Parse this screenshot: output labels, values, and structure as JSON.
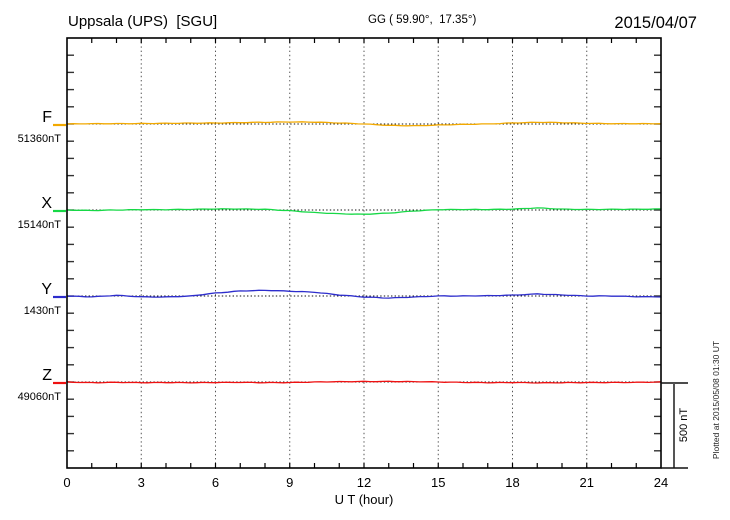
{
  "header": {
    "title": "Uppsala (UPS)  [SGU]",
    "coordinates": "GG ( 59.90°,  17.35°)",
    "date": "2015/04/07"
  },
  "footer_note": "Plotted at 2015/05/08 01:30 UT",
  "chart_data": {
    "type": "line",
    "title": "Uppsala (UPS)  [SGU]",
    "station": "Uppsala",
    "station_code": "UPS",
    "institute": "SGU",
    "coordinates_label": "GG ( 59.90°,  17.35°)",
    "date": "2015/04/07",
    "xlabel": "U T (hour)",
    "x_range_hours": [
      0,
      24
    ],
    "x_tick_labels": [
      "0",
      "3",
      "6",
      "9",
      "12",
      "15",
      "18",
      "21",
      "24"
    ],
    "x_step_hours": 1,
    "grid": "dotted vertical lines every 3 hours; dotted horizontal baseline per trace",
    "scale_bar": {
      "label": "500 nT",
      "nT": 500
    },
    "plotted_note": "Plotted at 2015/05/08 01:30 UT",
    "series": [
      {
        "name": "F",
        "baseline_label": "51360nT",
        "baseline_nT": 51360,
        "color": "#f2a900",
        "offsets_nT": [
          0,
          2,
          2,
          3,
          4,
          5,
          6,
          8,
          10,
          12,
          11,
          6,
          0,
          -8,
          -10,
          -6,
          -2,
          0,
          6,
          10,
          8,
          4,
          2,
          2,
          2
        ]
      },
      {
        "name": "X",
        "baseline_label": "15140nT",
        "baseline_nT": 15140,
        "color": "#17d846",
        "offsets_nT": [
          0,
          -3,
          0,
          2,
          2,
          4,
          6,
          6,
          4,
          -4,
          -15,
          -22,
          -25,
          -18,
          -6,
          2,
          3,
          3,
          5,
          12,
          5,
          3,
          4,
          4,
          6
        ]
      },
      {
        "name": "Y",
        "baseline_label": "1430nT",
        "baseline_nT": 1430,
        "color": "#2d2dcc",
        "offsets_nT": [
          0,
          -5,
          4,
          -5,
          -6,
          0,
          17,
          29,
          33,
          28,
          22,
          6,
          -6,
          -12,
          -6,
          0,
          0,
          2,
          5,
          12,
          6,
          0,
          0,
          -4,
          -5
        ]
      },
      {
        "name": "Z",
        "baseline_label": "49060nT",
        "baseline_nT": 49060,
        "color": "#ee1111",
        "offsets_nT": [
          0,
          -4,
          -2,
          -4,
          -3,
          -4,
          -3,
          -2,
          -4,
          -3,
          0,
          2,
          3,
          3,
          2,
          0,
          -2,
          -4,
          -3,
          -5,
          -4,
          -3,
          -3,
          -2,
          0
        ]
      }
    ]
  }
}
